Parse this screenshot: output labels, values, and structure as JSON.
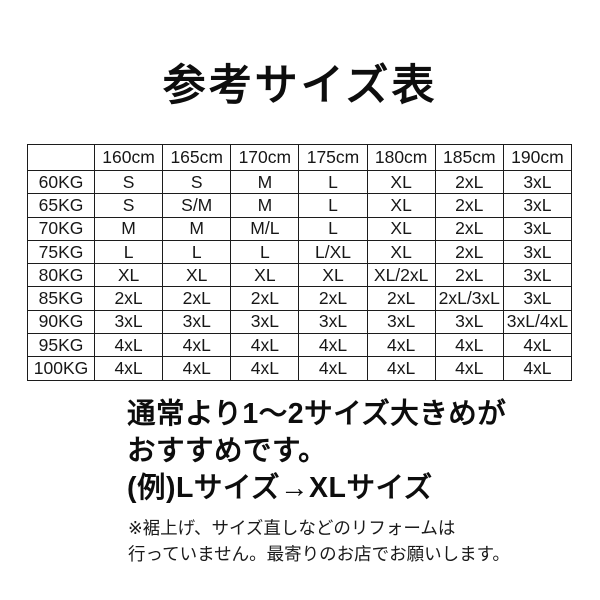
{
  "title": "参考サイズ表",
  "table": {
    "columns": [
      "",
      "160cm",
      "165cm",
      "170cm",
      "175cm",
      "180cm",
      "185cm",
      "190cm"
    ],
    "rows": [
      {
        "weight": "60KG",
        "sizes": [
          "S",
          "S",
          "M",
          "L",
          "XL",
          "2xL",
          "3xL"
        ]
      },
      {
        "weight": "65KG",
        "sizes": [
          "S",
          "S/M",
          "M",
          "L",
          "XL",
          "2xL",
          "3xL"
        ]
      },
      {
        "weight": "70KG",
        "sizes": [
          "M",
          "M",
          "M/L",
          "L",
          "XL",
          "2xL",
          "3xL"
        ]
      },
      {
        "weight": "75KG",
        "sizes": [
          "L",
          "L",
          "L",
          "L/XL",
          "XL",
          "2xL",
          "3xL"
        ]
      },
      {
        "weight": "80KG",
        "sizes": [
          "XL",
          "XL",
          "XL",
          "XL",
          "XL/2xL",
          "2xL",
          "3xL"
        ]
      },
      {
        "weight": "85KG",
        "sizes": [
          "2xL",
          "2xL",
          "2xL",
          "2xL",
          "2xL",
          "2xL/3xL",
          "3xL"
        ]
      },
      {
        "weight": "90KG",
        "sizes": [
          "3xL",
          "3xL",
          "3xL",
          "3xL",
          "3xL",
          "3xL",
          "3xL/4xL"
        ]
      },
      {
        "weight": "95KG",
        "sizes": [
          "4xL",
          "4xL",
          "4xL",
          "4xL",
          "4xL",
          "4xL",
          "4xL"
        ]
      },
      {
        "weight": "100KG",
        "sizes": [
          "4xL",
          "4xL",
          "4xL",
          "4xL",
          "4xL",
          "4xL",
          "4xL"
        ]
      }
    ]
  },
  "note": {
    "lines": [
      "通常より1～2サイズ大きめが",
      "おすすめです。",
      "(例)Lサイズ→XLサイズ"
    ]
  },
  "footnote": {
    "lines": [
      "※裾上げ、サイズ直しなどのリフォームは",
      "行っていません。最寄りのお店でお願いします。"
    ]
  },
  "colors": {
    "background": "#ffffff",
    "text": "#0d0d0d",
    "table_border": "#1c1c1c"
  }
}
